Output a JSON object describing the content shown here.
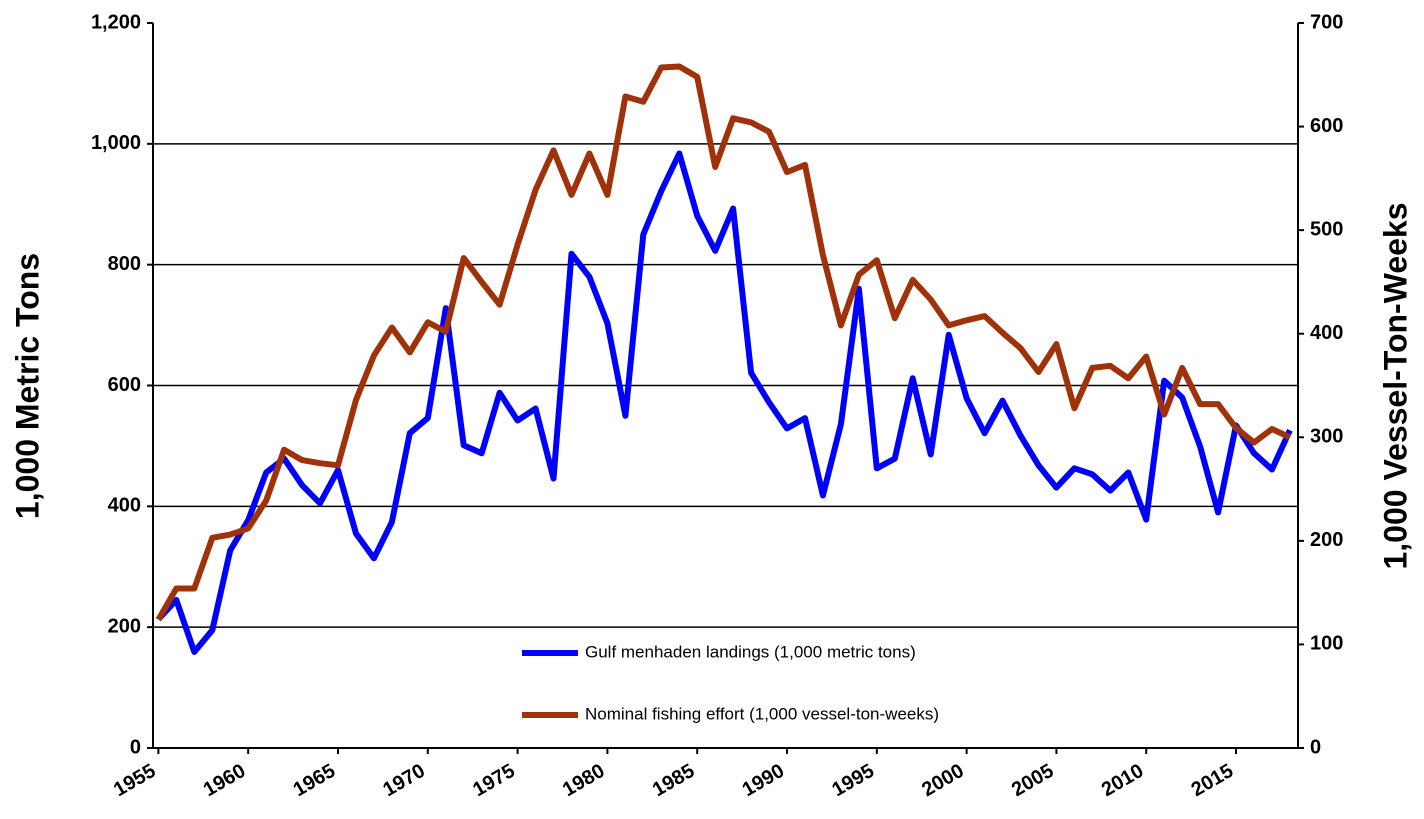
{
  "chart_data": {
    "type": "line",
    "x": [
      1955,
      1956,
      1957,
      1958,
      1959,
      1960,
      1961,
      1962,
      1963,
      1964,
      1965,
      1966,
      1967,
      1968,
      1969,
      1970,
      1971,
      1972,
      1973,
      1974,
      1975,
      1976,
      1977,
      1978,
      1979,
      1980,
      1981,
      1982,
      1983,
      1984,
      1985,
      1986,
      1987,
      1988,
      1989,
      1990,
      1991,
      1992,
      1993,
      1994,
      1995,
      1996,
      1997,
      1998,
      1999,
      2000,
      2001,
      2002,
      2003,
      2004,
      2005,
      2006,
      2007,
      2008,
      2009,
      2010,
      2011,
      2012,
      2013,
      2014,
      2015,
      2016,
      2017,
      2018
    ],
    "xlim": [
      1954.7,
      2018.45
    ],
    "xticks": [
      1955,
      1960,
      1965,
      1970,
      1975,
      1980,
      1985,
      1990,
      1995,
      2000,
      2005,
      2010,
      2015
    ],
    "ylim": [
      0,
      1200
    ],
    "yticks": [
      0,
      200,
      400,
      600,
      800,
      {
        "value": 1000,
        "label": "1,000"
      },
      {
        "value": 1200,
        "label": "1,200"
      }
    ],
    "y2lim": [
      0,
      700
    ],
    "y2ticks": [
      0,
      100,
      200,
      300,
      400,
      500,
      600,
      700
    ],
    "ylabel": "1,000 Metric Tons",
    "y2label": "1,000 Vessel-Ton-Weeks",
    "grid": true,
    "legend": "lower center",
    "series": [
      {
        "name": "Gulf menhaden landings (1,000  metric tons)",
        "color": "#0000ff",
        "values": [
          213,
          245,
          159,
          195,
          327,
          377,
          456,
          479,
          435,
          405,
          460,
          355,
          314,
          374,
          521,
          546,
          728,
          501,
          488,
          588,
          542,
          562,
          446,
          818,
          780,
          703,
          550,
          850,
          922,
          984,
          881,
          823,
          893,
          621,
          572,
          529,
          546,
          418,
          536,
          760,
          463,
          479,
          612,
          486,
          684,
          579,
          521,
          575,
          517,
          468,
          431,
          463,
          453,
          426,
          456,
          378,
          608,
          580,
          499,
          390,
          534,
          488,
          461,
          526
        ]
      },
      {
        "name": "Nominal fishing effort (1,000 vessel-ton-weeks)",
        "color": "#a0320a",
        "axis": "y2",
        "values": [
          124,
          154,
          154,
          203,
          206,
          212,
          239,
          288,
          278,
          275,
          273,
          336,
          379,
          406,
          382,
          411,
          402,
          473,
          450,
          428,
          486,
          539,
          577,
          534,
          574,
          534,
          629,
          624,
          657,
          658,
          648,
          561,
          608,
          604,
          595,
          556,
          563,
          476,
          408,
          457,
          471,
          415,
          452,
          433,
          408,
          413,
          417,
          401,
          386,
          363,
          390,
          328,
          367,
          369,
          357,
          378,
          322,
          367,
          332,
          332,
          309,
          295,
          308,
          300
        ]
      }
    ]
  }
}
